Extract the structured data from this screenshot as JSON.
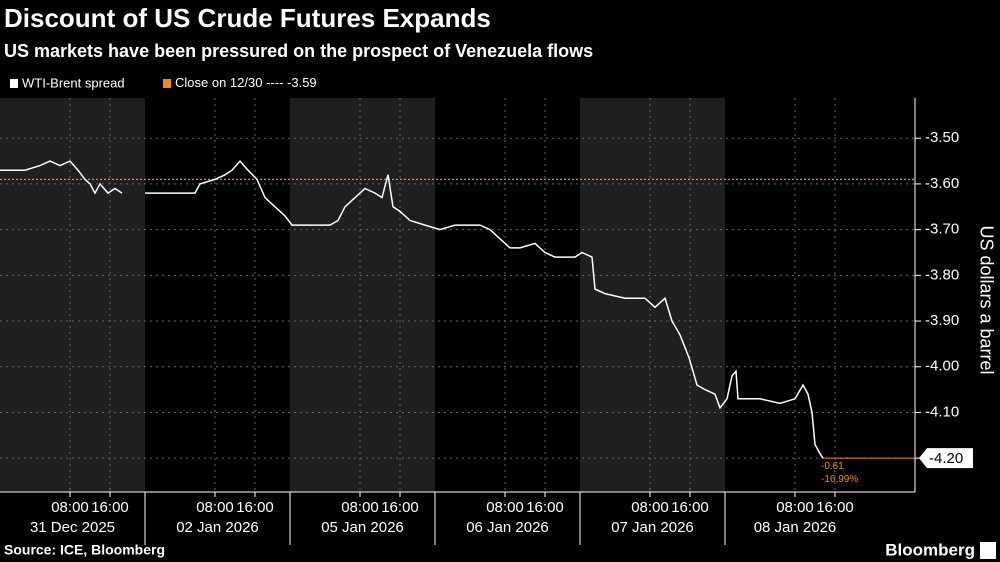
{
  "chart_data": {
    "type": "line",
    "title": "Discount of US Crude Futures Expands",
    "subtitle": "US markets have been pressured on the prospect of Venezuela flows",
    "y_label": "US dollars a barrel",
    "source": "Source: ICE, Bloomberg",
    "brand": "Bloomberg",
    "series": [
      {
        "name": "WTI-Brent spread",
        "color": "#ffffff",
        "x": [
          0,
          5,
          8,
          10,
          12,
          14,
          15.6,
          17,
          18,
          19,
          20,
          21.6,
          23,
          24.4,
          26,
          29,
          39,
          40,
          43,
          45,
          46.4,
          48,
          49.6,
          51.4,
          53,
          55,
          57,
          58.4,
          66,
          67.6,
          69,
          71,
          73,
          75,
          76.4,
          77.6,
          78.6,
          80,
          82,
          85,
          88,
          91,
          96,
          98,
          100,
          102,
          104,
          107,
          109,
          111,
          113,
          115,
          116.4,
          118.4,
          119,
          121,
          125,
          129,
          131,
          133,
          134.4,
          136,
          137.8,
          139.4,
          141,
          143,
          144,
          145.4,
          146.4,
          147.2,
          147.6,
          152,
          156,
          159,
          160.6,
          161.6,
          162.4,
          163,
          164,
          164.6
        ],
        "values": [
          -3.57,
          -3.57,
          -3.56,
          -3.55,
          -3.56,
          -3.55,
          -3.57,
          -3.59,
          -3.6,
          -3.62,
          -3.6,
          -3.62,
          -3.61,
          -3.62,
          null,
          -3.62,
          -3.62,
          -3.6,
          -3.59,
          -3.58,
          -3.57,
          -3.55,
          -3.57,
          -3.59,
          -3.63,
          -3.65,
          -3.67,
          -3.69,
          -3.69,
          -3.68,
          -3.65,
          -3.63,
          -3.61,
          -3.62,
          -3.63,
          -3.58,
          -3.65,
          -3.66,
          -3.68,
          -3.69,
          -3.7,
          -3.69,
          -3.69,
          -3.7,
          -3.72,
          -3.74,
          -3.74,
          -3.73,
          -3.75,
          -3.76,
          -3.76,
          -3.76,
          -3.75,
          -3.76,
          -3.83,
          -3.84,
          -3.85,
          -3.85,
          -3.87,
          -3.85,
          -3.9,
          -3.93,
          -3.98,
          -4.04,
          -4.05,
          -4.06,
          -4.09,
          -4.07,
          -4.02,
          -4.01,
          -4.07,
          -4.07,
          -4.08,
          -4.07,
          -4.04,
          -4.06,
          -4.1,
          -4.17,
          -4.19,
          -4.2
        ]
      }
    ],
    "reference_line": {
      "name": "Close on 12/30",
      "separator": "----",
      "value": -3.59,
      "color": "#f08a1c"
    },
    "last_value_label": {
      "value": -4.2,
      "label": "-4.20"
    },
    "annotations": [
      "-0.61",
      "-16.99%"
    ],
    "sessions": [
      {
        "label": "31 Dec 2025",
        "start": 0
      },
      {
        "label": "02 Jan 2026",
        "start": 29
      },
      {
        "label": "05 Jan 2026",
        "start": 58
      },
      {
        "label": "06 Jan 2026",
        "start": 87
      },
      {
        "label": "07 Jan 2026",
        "start": 116
      },
      {
        "label": "08 Jan 2026",
        "start": 145
      }
    ],
    "xlim": [
      0,
      183
    ],
    "xticks": [
      {
        "value": 14,
        "label": "08:00"
      },
      {
        "value": 22,
        "label": "16:00"
      },
      {
        "value": 43,
        "label": "08:00"
      },
      {
        "value": 51,
        "label": "16:00"
      },
      {
        "value": 72,
        "label": "08:00"
      },
      {
        "value": 80,
        "label": "16:00"
      },
      {
        "value": 101,
        "label": "08:00"
      },
      {
        "value": 109,
        "label": "16:00"
      },
      {
        "value": 130,
        "label": "08:00"
      },
      {
        "value": 138,
        "label": "16:00"
      },
      {
        "value": 159,
        "label": "08:00"
      },
      {
        "value": 167,
        "label": "16:00"
      }
    ],
    "ylim": [
      -4.274,
      -3.412
    ],
    "yticks": [
      {
        "value": -3.5,
        "label": "-3.50"
      },
      {
        "value": -3.6,
        "label": "-3.60"
      },
      {
        "value": -3.7,
        "label": "-3.70"
      },
      {
        "value": -3.8,
        "label": "-3.80"
      },
      {
        "value": -3.9,
        "label": "-3.90"
      },
      {
        "value": -4.0,
        "label": "-4.00"
      },
      {
        "value": -4.1,
        "label": "-4.10"
      },
      {
        "value": -4.2,
        "label": "-4.20"
      }
    ],
    "grid": true
  }
}
